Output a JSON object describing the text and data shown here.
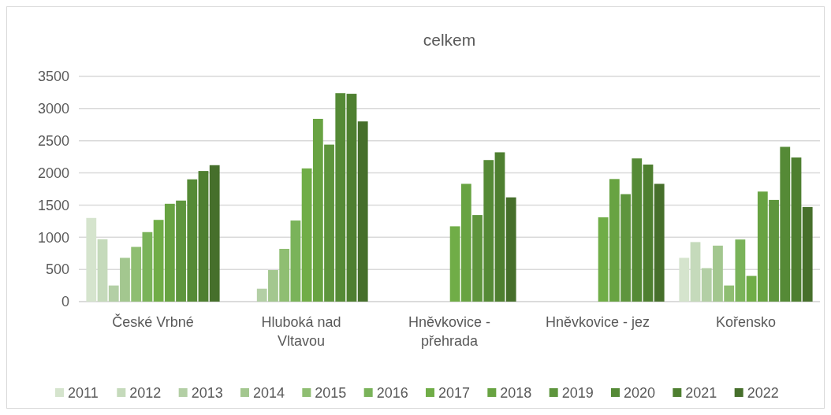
{
  "chart_data": {
    "type": "bar",
    "title": "celkem",
    "categories": [
      "České Vrbné",
      "Hluboká nad Vltavou",
      "Hněvkovice - přehrada",
      "Hněvkovice - jez",
      "Kořensko"
    ],
    "series": [
      {
        "name": "2011",
        "color": "#d5e4cd",
        "values": [
          1300,
          null,
          null,
          null,
          680
        ]
      },
      {
        "name": "2012",
        "color": "#c5dabb",
        "values": [
          970,
          null,
          null,
          null,
          925
        ]
      },
      {
        "name": "2013",
        "color": "#b3cfa5",
        "values": [
          250,
          200,
          null,
          null,
          520
        ]
      },
      {
        "name": "2014",
        "color": "#a3c78f",
        "values": [
          680,
          490,
          null,
          null,
          870
        ]
      },
      {
        "name": "2015",
        "color": "#8fbe72",
        "values": [
          850,
          820,
          null,
          null,
          250
        ]
      },
      {
        "name": "2016",
        "color": "#7ab35a",
        "values": [
          1080,
          1260,
          null,
          null,
          965
        ]
      },
      {
        "name": "2017",
        "color": "#70ad47",
        "values": [
          1270,
          2070,
          1170,
          1310,
          400
        ]
      },
      {
        "name": "2018",
        "color": "#68a342",
        "values": [
          1520,
          2840,
          1830,
          1905,
          1710
        ]
      },
      {
        "name": "2019",
        "color": "#5e953d",
        "values": [
          1570,
          2440,
          1345,
          1670,
          1580
        ]
      },
      {
        "name": "2020",
        "color": "#558a36",
        "values": [
          1900,
          3240,
          2200,
          2225,
          2405
        ]
      },
      {
        "name": "2021",
        "color": "#4e7f30",
        "values": [
          2030,
          3230,
          2320,
          2130,
          2240
        ]
      },
      {
        "name": "2022",
        "color": "#466f2b",
        "values": [
          2120,
          2800,
          1620,
          1830,
          1470
        ]
      }
    ],
    "ylim": [
      0,
      3500
    ],
    "yticks": [
      0,
      500,
      1000,
      1500,
      2000,
      2500,
      3000,
      3500
    ],
    "grid": "y",
    "legend": "bottom"
  }
}
